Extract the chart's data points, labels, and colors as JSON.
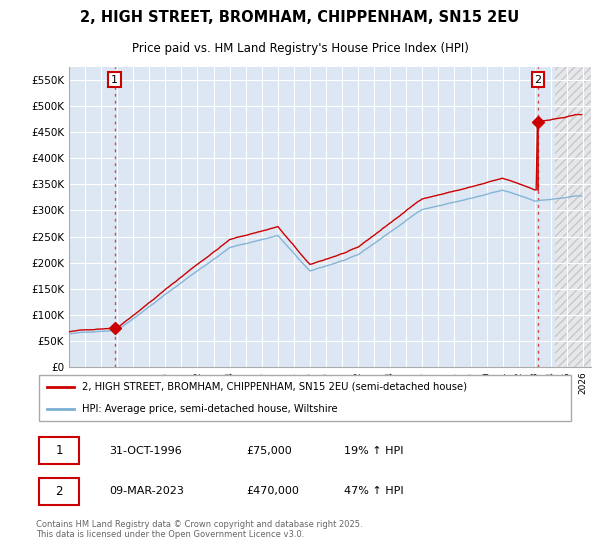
{
  "title": "2, HIGH STREET, BROMHAM, CHIPPENHAM, SN15 2EU",
  "subtitle": "Price paid vs. HM Land Registry's House Price Index (HPI)",
  "ylim": [
    0,
    575000
  ],
  "yticks": [
    0,
    50000,
    100000,
    150000,
    200000,
    250000,
    300000,
    350000,
    400000,
    450000,
    500000,
    550000
  ],
  "ytick_labels": [
    "£0",
    "£50K",
    "£100K",
    "£150K",
    "£200K",
    "£250K",
    "£300K",
    "£350K",
    "£400K",
    "£450K",
    "£500K",
    "£550K"
  ],
  "xlim_start": 1994.0,
  "xlim_end": 2026.5,
  "plot_bg_color": "#dce7f3",
  "grid_color": "#ffffff",
  "legend_entries": [
    "2, HIGH STREET, BROMHAM, CHIPPENHAM, SN15 2EU (semi-detached house)",
    "HPI: Average price, semi-detached house, Wiltshire"
  ],
  "line_colors": [
    "#cc0000",
    "#7bafd4"
  ],
  "sale1_date": "31-OCT-1996",
  "sale1_price": 75000,
  "sale1_label": "19% ↑ HPI",
  "sale2_date": "09-MAR-2023",
  "sale2_price": 470000,
  "sale2_label": "47% ↑ HPI",
  "footer": "Contains HM Land Registry data © Crown copyright and database right 2025.\nThis data is licensed under the Open Government Licence v3.0.",
  "sale1_x": 1996.833,
  "sale1_y": 75000,
  "sale2_x": 2023.2,
  "sale2_y": 470000,
  "hatch_right_start": 2024.25
}
